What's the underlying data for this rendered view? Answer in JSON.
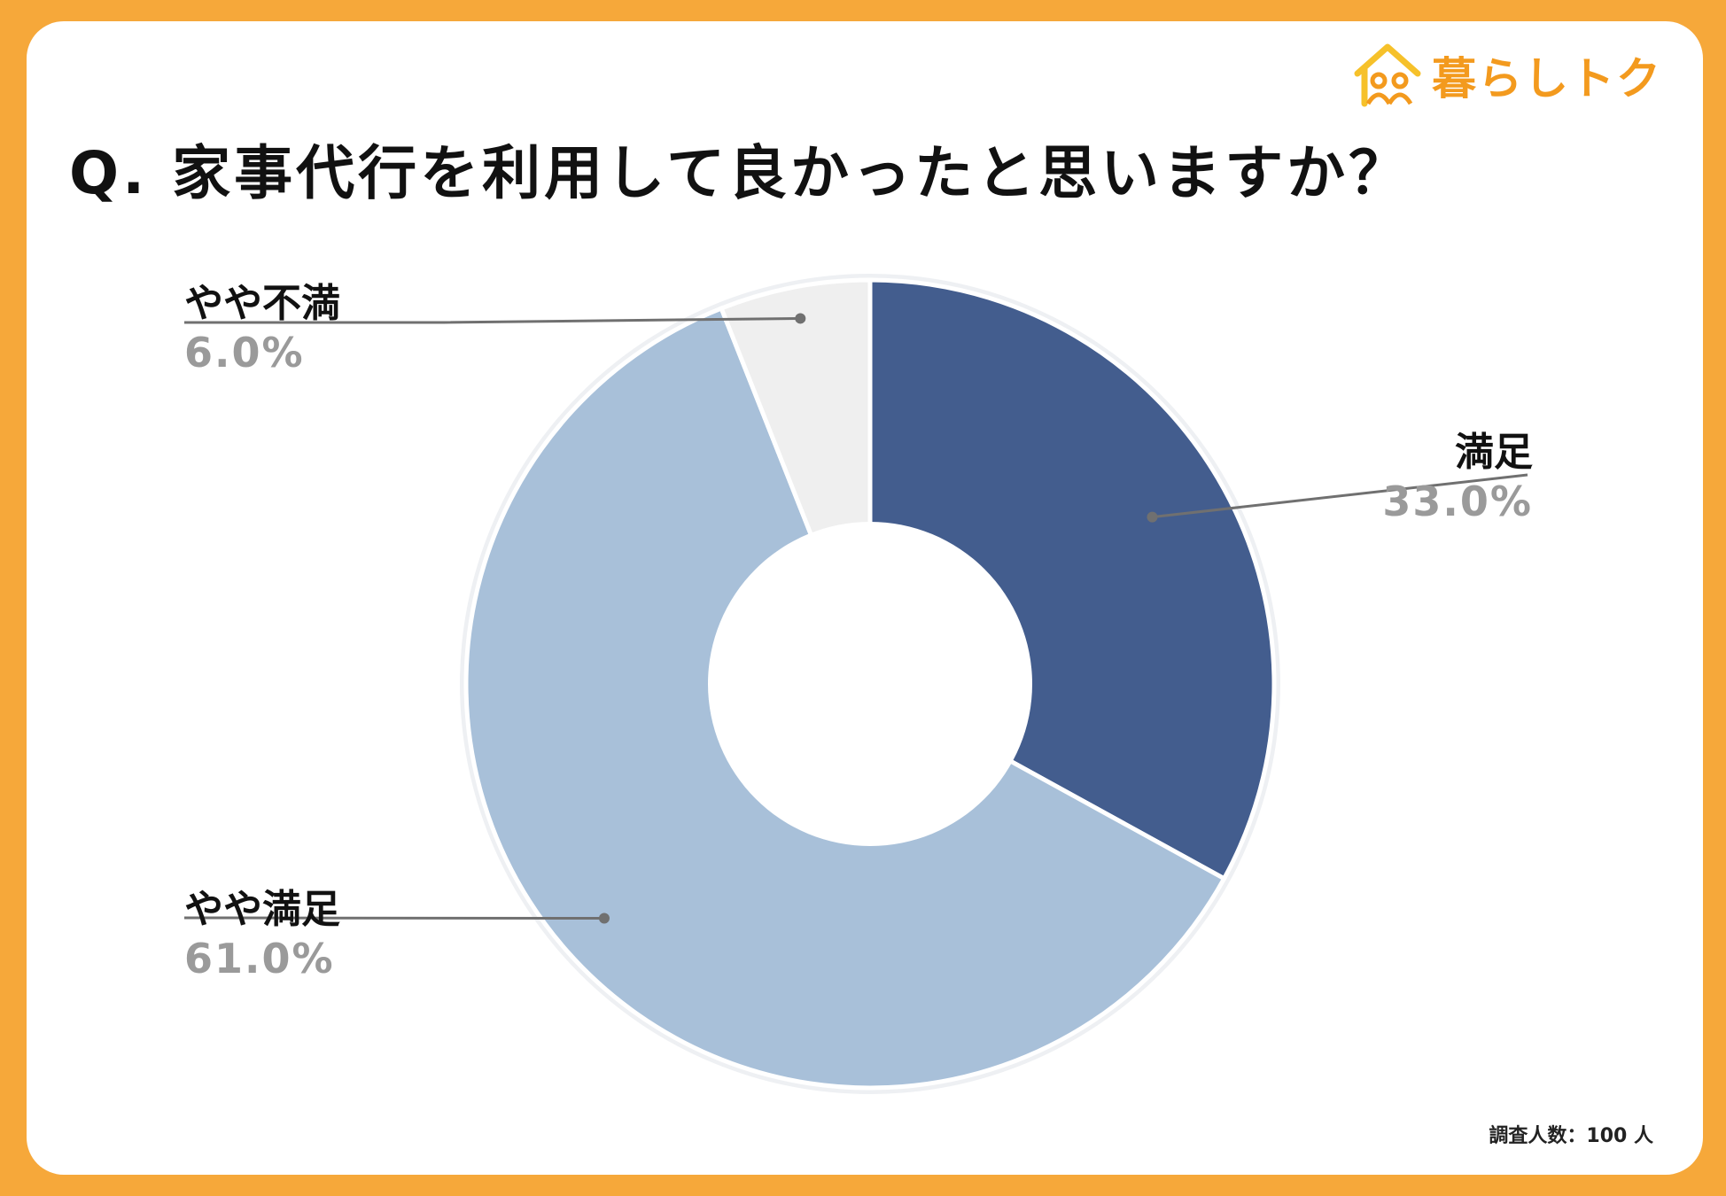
{
  "header": {
    "title": "Q. 家事代行を利用して良かったと思いますか？",
    "logo_text": "暮らしトク",
    "logo_icon": "house-family-icon"
  },
  "chart_data": {
    "type": "pie",
    "donut": true,
    "title": "Q. 家事代行を利用して良かったと思いますか？",
    "categories": [
      "満足",
      "やや満足",
      "やや不満"
    ],
    "values": [
      33.0,
      61.0,
      6.0
    ],
    "value_labels": [
      "33.0%",
      "61.0%",
      "6.0%"
    ],
    "colors": [
      "#435d8e",
      "#a8c0d9",
      "#efefef"
    ],
    "start_angle": "12 o'clock",
    "direction": "clockwise",
    "legend": "none"
  },
  "footnote": "調査人数：100 人"
}
